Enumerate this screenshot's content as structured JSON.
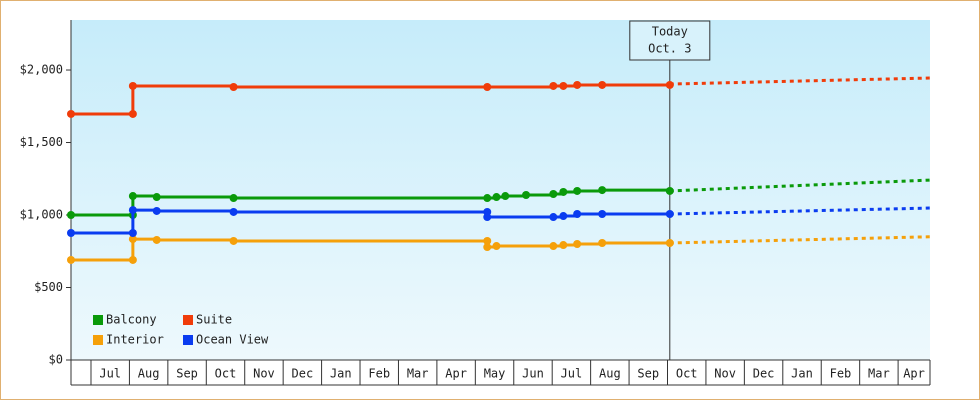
{
  "chart_data": {
    "type": "step-line",
    "categories": [
      "Jul",
      "Aug",
      "Sep",
      "Oct",
      "Nov",
      "Dec",
      "Jan",
      "Feb",
      "Mar",
      "Apr",
      "May",
      "Jun",
      "Jul",
      "Aug",
      "Sep",
      "Oct",
      "Nov",
      "Dec",
      "Jan",
      "Feb",
      "Mar",
      "Apr"
    ],
    "xlim": [
      -0.52,
      21.83
    ],
    "ylim": [
      0,
      2345
    ],
    "yticks": [
      {
        "value": 0,
        "label": "$0"
      },
      {
        "value": 500,
        "label": "$500"
      },
      {
        "value": 1000,
        "label": "$1,000"
      },
      {
        "value": 1500,
        "label": "$1,500"
      },
      {
        "value": 2000,
        "label": "$2,000"
      }
    ],
    "legend": "bottom-left",
    "annotation": {
      "lines": [
        "Today",
        "Oct. 3"
      ],
      "x": 15.06
    },
    "series": [
      {
        "name": "Balcony",
        "color": "#0a9a0a",
        "x": [
          -0.52,
          1.09,
          1.09,
          1.71,
          3.71,
          10.31,
          10.55,
          10.78,
          11.32,
          12.03,
          12.29,
          12.65,
          13.3,
          15.06
        ],
        "values": [
          1000,
          1000,
          1131,
          1124,
          1117,
          1117,
          1124,
          1131,
          1138,
          1145,
          1159,
          1166,
          1172,
          1166
        ],
        "forecast": {
          "x": [
            15.06,
            21.83
          ],
          "values": [
            1166,
            1241
          ]
        }
      },
      {
        "name": "Suite",
        "color": "#f03c0a",
        "x": [
          -0.52,
          1.09,
          1.09,
          3.71,
          10.31,
          12.03,
          12.29,
          12.65,
          13.3,
          15.06
        ],
        "values": [
          1697,
          1697,
          1890,
          1883,
          1883,
          1890,
          1890,
          1897,
          1897,
          1897
        ],
        "forecast": {
          "x": [
            15.06,
            21.83
          ],
          "values": [
            1903,
            1945
          ]
        }
      },
      {
        "name": "Interior",
        "color": "#f5a00a",
        "x": [
          -0.52,
          1.09,
          1.09,
          1.71,
          3.71,
          10.31,
          10.31,
          10.55,
          12.03,
          12.29,
          12.65,
          13.3,
          15.06
        ],
        "values": [
          690,
          690,
          834,
          828,
          821,
          821,
          779,
          786,
          786,
          793,
          800,
          807,
          807
        ],
        "forecast": {
          "x": [
            15.06,
            21.83
          ],
          "values": [
            807,
            850
          ]
        }
      },
      {
        "name": "Ocean View",
        "color": "#0a3cf0",
        "x": [
          -0.52,
          1.09,
          1.09,
          1.71,
          3.71,
          10.31,
          10.31,
          12.03,
          12.29,
          12.65,
          13.3,
          15.06
        ],
        "values": [
          876,
          876,
          1034,
          1028,
          1021,
          1021,
          986,
          986,
          993,
          1007,
          1007,
          1007
        ],
        "forecast": {
          "x": [
            15.06,
            21.83
          ],
          "values": [
            1007,
            1048
          ]
        }
      }
    ]
  }
}
